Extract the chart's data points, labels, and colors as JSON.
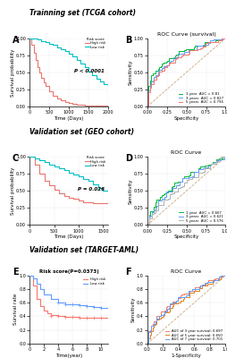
{
  "title_row1": "Trainning set (TCGA cohort)",
  "title_row2": "Validation set (GEO cohort)",
  "title_row3": "Validation set (TARGET-AML)",
  "panel_A": {
    "label": "A",
    "p_value": "P < 0.0001",
    "xlabel": "Time (Days)",
    "ylabel": "Survival probability",
    "high_risk_x": [
      0,
      50,
      100,
      150,
      200,
      250,
      300,
      350,
      400,
      500,
      600,
      700,
      800,
      900,
      1000,
      1100,
      1200,
      1300,
      1400,
      1600,
      1800,
      2000
    ],
    "high_risk_y": [
      1.0,
      0.9,
      0.78,
      0.68,
      0.58,
      0.5,
      0.42,
      0.36,
      0.3,
      0.22,
      0.16,
      0.12,
      0.09,
      0.07,
      0.05,
      0.04,
      0.03,
      0.02,
      0.01,
      0.01,
      0.01,
      0.01
    ],
    "low_risk_x": [
      0,
      100,
      200,
      300,
      400,
      500,
      600,
      700,
      800,
      900,
      1000,
      1100,
      1200,
      1300,
      1400,
      1500,
      1600,
      1700,
      1800,
      1900,
      2000
    ],
    "low_risk_y": [
      1.0,
      0.99,
      0.98,
      0.96,
      0.94,
      0.92,
      0.9,
      0.87,
      0.84,
      0.81,
      0.77,
      0.73,
      0.68,
      0.63,
      0.57,
      0.51,
      0.46,
      0.41,
      0.37,
      0.33,
      0.29
    ],
    "high_color": "#E8766D",
    "low_color": "#00BFC4",
    "xlim": [
      0,
      2000
    ],
    "ylim": [
      0.0,
      1.0
    ],
    "xticks": [
      0,
      500,
      1000,
      1500,
      2000
    ],
    "yticks": [
      0.0,
      0.25,
      0.5,
      0.75,
      1.0
    ]
  },
  "panel_B": {
    "label": "B",
    "title": "ROC Curve (survival)",
    "xlabel": "Specificity",
    "ylabel": "Sensitivity",
    "legend": [
      "1 year  AUC = 0.81",
      "3 years  AUC = 0.827",
      "5 years  AUC = 0.796"
    ],
    "colors": [
      "#00BA38",
      "#619CFF",
      "#F8766D"
    ],
    "powers": [
      0.3,
      0.34,
      0.38
    ],
    "diag_color": "#C8A882",
    "xticks": [
      0.0,
      0.25,
      0.5,
      0.75,
      1.0
    ],
    "yticks": [
      0.0,
      0.25,
      0.5,
      0.75,
      1.0
    ]
  },
  "panel_C": {
    "label": "C",
    "p_value": "P = 0.026",
    "xlabel": "Time (Days)",
    "ylabel": "Survival probability",
    "high_risk_x": [
      0,
      100,
      200,
      300,
      400,
      500,
      600,
      700,
      800,
      900,
      1000,
      1100,
      1200,
      1300,
      1400,
      1500,
      1600
    ],
    "high_risk_y": [
      1.0,
      0.88,
      0.75,
      0.65,
      0.58,
      0.52,
      0.47,
      0.43,
      0.4,
      0.38,
      0.36,
      0.34,
      0.33,
      0.32,
      0.32,
      0.32,
      0.38
    ],
    "low_risk_x": [
      0,
      100,
      200,
      300,
      400,
      500,
      600,
      700,
      800,
      900,
      1000,
      1100,
      1200,
      1300,
      1400,
      1500,
      1600
    ],
    "low_risk_y": [
      1.0,
      0.98,
      0.95,
      0.92,
      0.89,
      0.86,
      0.83,
      0.8,
      0.77,
      0.74,
      0.71,
      0.68,
      0.65,
      0.6,
      0.55,
      0.5,
      0.5
    ],
    "high_color": "#E8766D",
    "low_color": "#00BFC4",
    "xlim": [
      0,
      1600
    ],
    "ylim": [
      0.0,
      1.0
    ],
    "xticks": [
      0,
      500,
      1000,
      1500
    ],
    "yticks": [
      0.0,
      0.25,
      0.5,
      0.75,
      1.0
    ]
  },
  "panel_D": {
    "label": "D",
    "title": "ROC Curve",
    "xlabel": "Specificity",
    "ylabel": "Sensitivity",
    "legend": [
      "1 year  AUC = 0.667",
      "3 years  AUC = 0.621",
      "5 years  AUC = 0.576"
    ],
    "colors": [
      "#00BA38",
      "#619CFF",
      "#B0B0B0"
    ],
    "powers": [
      0.5,
      0.58,
      0.68
    ],
    "diag_color": "#C8A882",
    "xticks": [
      0.0,
      0.25,
      0.5,
      0.75,
      1.0
    ],
    "yticks": [
      0.0,
      0.25,
      0.5,
      0.75,
      1.0
    ]
  },
  "panel_E": {
    "label": "E",
    "title": "Risk score(P=0.0373)",
    "xlabel": "Time(year)",
    "ylabel": "Survival rate",
    "high_risk_x": [
      0,
      0.5,
      1,
      1.5,
      2,
      2.5,
      3,
      4,
      5,
      6,
      7,
      8,
      9,
      10,
      11
    ],
    "high_risk_y": [
      1.0,
      0.85,
      0.65,
      0.55,
      0.48,
      0.44,
      0.42,
      0.4,
      0.39,
      0.39,
      0.38,
      0.38,
      0.38,
      0.38,
      0.38
    ],
    "low_risk_x": [
      0,
      0.5,
      1,
      1.5,
      2,
      3,
      4,
      5,
      6,
      7,
      8,
      9,
      10,
      11
    ],
    "low_risk_y": [
      1.0,
      0.95,
      0.88,
      0.8,
      0.72,
      0.65,
      0.6,
      0.58,
      0.57,
      0.56,
      0.55,
      0.54,
      0.53,
      0.52
    ],
    "high_color": "#F8766D",
    "low_color": "#619CFF",
    "xlim": [
      0,
      11
    ],
    "ylim": [
      0.0,
      1.0
    ],
    "xticks": [
      0,
      2,
      4,
      6,
      8,
      10
    ],
    "yticks": [
      0.0,
      0.2,
      0.4,
      0.6,
      0.8,
      1.0
    ],
    "censor_high_x": [
      3,
      4,
      5,
      6,
      7,
      8,
      9,
      10
    ],
    "censor_high_y": [
      0.4,
      0.4,
      0.39,
      0.39,
      0.38,
      0.38,
      0.38,
      0.38
    ],
    "censor_low_x": [
      4,
      5,
      6,
      7,
      8,
      9,
      10
    ],
    "censor_low_y": [
      0.6,
      0.58,
      0.57,
      0.56,
      0.55,
      0.54,
      0.53
    ]
  },
  "panel_F": {
    "label": "F",
    "title": "ROC Curve",
    "xlabel": "1-Specificity",
    "ylabel": "Sensitivity",
    "legend": [
      "AUC of 3 year survival: 0.697",
      "AUC of 5 year survival: 0.650",
      "AUC of 7 year survival: 0.701"
    ],
    "colors": [
      "#F8766D",
      "#E08020",
      "#619CFF"
    ],
    "powers": [
      0.46,
      0.54,
      0.48
    ],
    "diag_color": "#C8A882",
    "xticks": [
      0.0,
      0.2,
      0.4,
      0.6,
      0.8,
      1.0
    ],
    "yticks": [
      0.0,
      0.2,
      0.4,
      0.6,
      0.8,
      1.0
    ]
  },
  "bg_color": "#FFFFFF",
  "grid_color": "#EBEBEB"
}
